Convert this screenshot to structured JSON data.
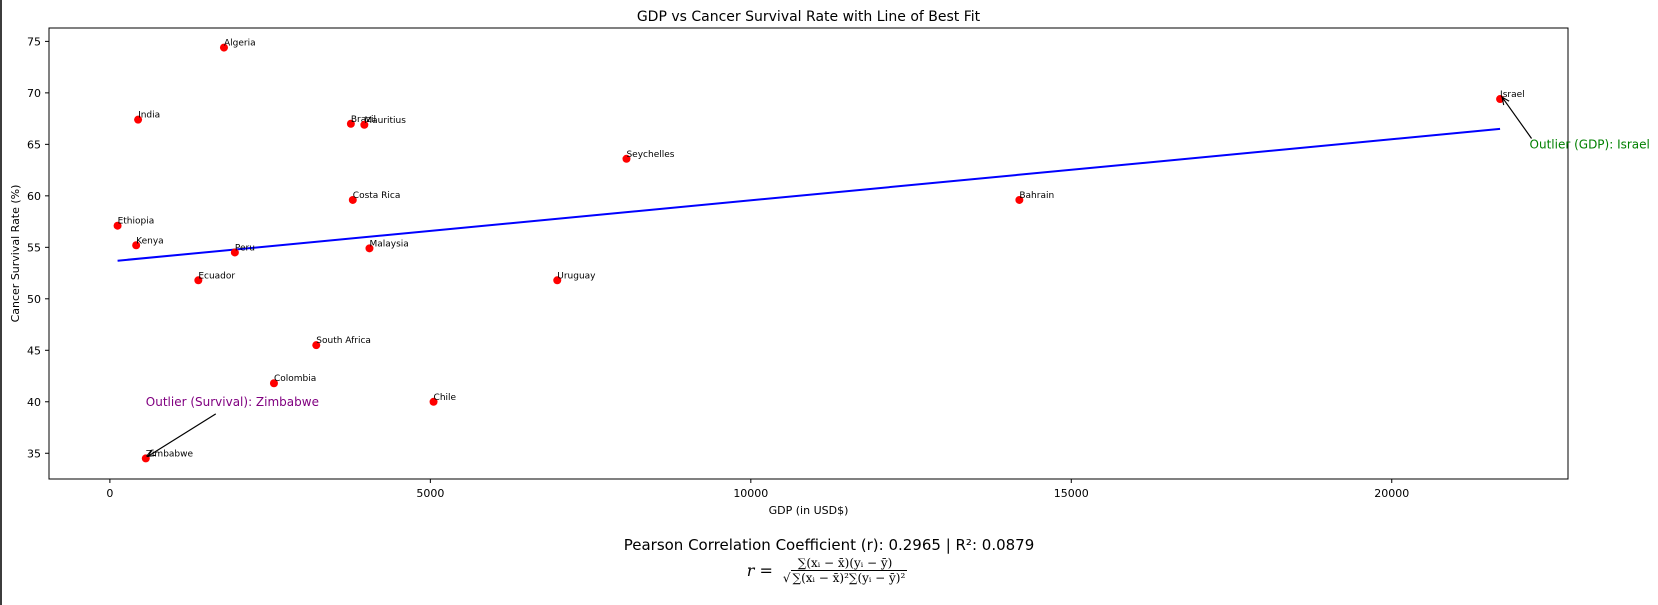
{
  "chart_data": {
    "type": "scatter",
    "title": "GDP vs Cancer Survival Rate with Line of Best Fit",
    "xlabel": "GDP (in USD$)",
    "ylabel": "Cancer Survival Rate (%)",
    "xlim": [
      -950,
      22750
    ],
    "ylim": [
      32.5,
      76.3
    ],
    "xticks": [
      0,
      5000,
      10000,
      15000,
      20000
    ],
    "yticks": [
      35,
      40,
      45,
      50,
      55,
      60,
      65,
      70,
      75
    ],
    "grid": false,
    "point_color": "#ff0000",
    "line_color": "#0000ff",
    "points": [
      {
        "label": "Algeria",
        "x": 1780,
        "y": 74.4
      },
      {
        "label": "India",
        "x": 440,
        "y": 67.4
      },
      {
        "label": "Brazil",
        "x": 3760,
        "y": 67.0
      },
      {
        "label": "Mauritius",
        "x": 3970,
        "y": 66.9
      },
      {
        "label": "Seychelles",
        "x": 8060,
        "y": 63.6
      },
      {
        "label": "Israel",
        "x": 21690,
        "y": 69.4
      },
      {
        "label": "Costa Rica",
        "x": 3790,
        "y": 59.6
      },
      {
        "label": "Bahrain",
        "x": 14190,
        "y": 59.6
      },
      {
        "label": "Ethiopia",
        "x": 120,
        "y": 57.1
      },
      {
        "label": "Kenya",
        "x": 410,
        "y": 55.2
      },
      {
        "label": "Peru",
        "x": 1950,
        "y": 54.5
      },
      {
        "label": "Malaysia",
        "x": 4050,
        "y": 54.9
      },
      {
        "label": "Ecuador",
        "x": 1380,
        "y": 51.8
      },
      {
        "label": "Uruguay",
        "x": 6980,
        "y": 51.8
      },
      {
        "label": "South Africa",
        "x": 3220,
        "y": 45.5
      },
      {
        "label": "Colombia",
        "x": 2560,
        "y": 41.8
      },
      {
        "label": "Chile",
        "x": 5050,
        "y": 40.0
      },
      {
        "label": "Zimbabwe",
        "x": 560,
        "y": 34.5
      }
    ],
    "fit_line": {
      "x": [
        120,
        21690
      ],
      "y": [
        53.7,
        66.5
      ]
    },
    "annotations": [
      {
        "text": "Outlier (GDP): Israel",
        "color": "#008000",
        "text_x": 22150,
        "text_y": 64.6,
        "target_x": 21690,
        "target_y": 69.4
      },
      {
        "text": "Outlier (Survival): Zimbabwe",
        "color": "#800080",
        "text_x": 560,
        "text_y": 39.6,
        "target_x": 560,
        "target_y": 34.5
      }
    ]
  },
  "stats_text": "Pearson Correlation Coefficient (r): 0.2965 | R²: 0.0879",
  "formula": {
    "lhs": "r =",
    "numerator": "∑(xᵢ − x̄)(yᵢ − ȳ)",
    "denominator": "∑(xᵢ − x̄)²∑(yᵢ − ȳ)²",
    "radical": "√"
  }
}
